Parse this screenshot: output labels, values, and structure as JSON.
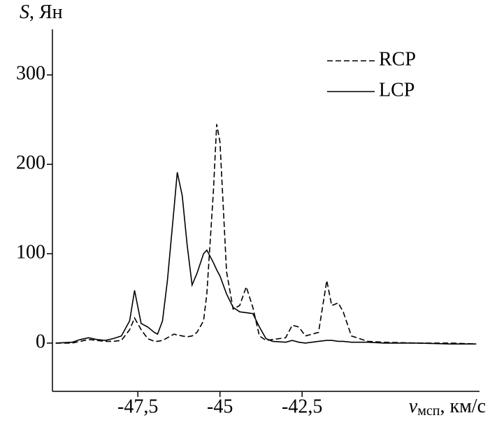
{
  "chart_data": {
    "type": "line",
    "ylabel": [
      "S",
      ", Ян"
    ],
    "xlabel": [
      "v",
      "мсп",
      ", км/с"
    ],
    "x": [
      -50,
      -49.5,
      -49.25,
      -49,
      -48.75,
      -48.5,
      -48.25,
      -48,
      -47.75,
      -47.6,
      -47.4,
      -47.2,
      -47,
      -46.9,
      -46.75,
      -46.6,
      -46.4,
      -46.3,
      -46.15,
      -46,
      -45.85,
      -45.7,
      -45.5,
      -45.4,
      -45.2,
      -45.1,
      -45,
      -44.8,
      -44.6,
      -44.4,
      -44.2,
      -44,
      -43.8,
      -43.6,
      -43.4,
      -43,
      -42.8,
      -42.6,
      -42.4,
      -42,
      -41.75,
      -41.6,
      -41.4,
      -41.25,
      -41,
      -40.5,
      -40,
      -39,
      -38,
      -37.2
    ],
    "series": [
      {
        "name": "RCP",
        "color": "#000000",
        "dashed": true,
        "values": [
          0,
          0,
          2,
          4,
          3,
          2,
          2,
          3,
          15,
          28,
          15,
          5,
          2,
          2,
          3,
          6,
          10,
          9,
          8,
          7,
          8,
          12,
          25,
          55,
          170,
          245,
          225,
          80,
          38,
          42,
          63,
          40,
          8,
          3,
          4,
          6,
          20,
          18,
          8,
          12,
          70,
          42,
          45,
          35,
          8,
          2,
          1,
          0,
          0,
          -1
        ]
      },
      {
        "name": "LCP",
        "color": "#000000",
        "dashed": false,
        "values": [
          0,
          1,
          4,
          6,
          4,
          3,
          5,
          8,
          25,
          59,
          22,
          18,
          12,
          10,
          25,
          70,
          150,
          191,
          165,
          110,
          65,
          78,
          100,
          104,
          90,
          82,
          75,
          55,
          40,
          35,
          34,
          33,
          18,
          5,
          2,
          1,
          3,
          1,
          0,
          2,
          3,
          3,
          2,
          2,
          1,
          1,
          0,
          0,
          -1,
          -1
        ]
      }
    ],
    "xlim": [
      -50.1,
      -37.1
    ],
    "ylim": [
      -54,
      351
    ],
    "xticks": [
      {
        "value": -47.5,
        "label": "-47,5"
      },
      -45,
      {
        "value": -42.5,
        "label": "-42,5"
      }
    ],
    "yticks": [
      0,
      100,
      200,
      300
    ],
    "legend": "upper right"
  }
}
